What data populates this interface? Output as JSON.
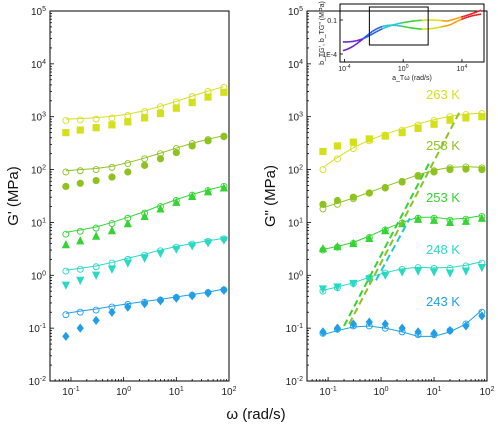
{
  "chart_data": [
    {
      "type": "scatter",
      "panel": "left",
      "ylabel": "G' (MPa)",
      "xlabel": "ω (rad/s)",
      "x_scale": "log",
      "y_scale": "log",
      "xlim": [
        0.04,
        100
      ],
      "ylim": [
        0.01,
        100000
      ],
      "x_ticks": [
        "10^-1",
        "10^0",
        "10^1",
        "10^2"
      ],
      "y_ticks": [
        "10^-2",
        "10^-1",
        "10^0",
        "10^1",
        "10^2",
        "10^3",
        "10^4",
        "10^5"
      ],
      "series": [
        {
          "name": "263 K",
          "color": "#d4e01c",
          "filled_marker": "square",
          "x": [
            0.08,
            0.15,
            0.3,
            0.6,
            1.2,
            2.5,
            5,
            10,
            20,
            40,
            80
          ],
          "filled_y": [
            500,
            560,
            620,
            700,
            800,
            950,
            1150,
            1450,
            1850,
            2350,
            2900
          ],
          "open_y": [
            850,
            870,
            900,
            950,
            1050,
            1250,
            1550,
            1900,
            2400,
            3000,
            3600
          ],
          "fit_y": [
            900,
            920,
            960,
            1020,
            1120,
            1300,
            1580,
            1950,
            2450,
            3050,
            3700
          ]
        },
        {
          "name": "258 K",
          "color": "#8dc21f",
          "filled_marker": "circle",
          "x": [
            0.08,
            0.15,
            0.3,
            0.6,
            1.2,
            2.5,
            5,
            10,
            20,
            40,
            80
          ],
          "filled_y": [
            48,
            55,
            62,
            72,
            90,
            120,
            160,
            210,
            280,
            350,
            420
          ],
          "open_y": [
            90,
            95,
            100,
            110,
            130,
            160,
            200,
            250,
            310,
            370,
            430
          ],
          "fit_y": [
            95,
            100,
            105,
            115,
            135,
            165,
            205,
            255,
            315,
            375,
            440
          ]
        },
        {
          "name": "253 K",
          "color": "#33d433",
          "filled_marker": "triangle-up",
          "x": [
            0.08,
            0.15,
            0.3,
            0.6,
            1.2,
            2.5,
            5,
            10,
            20,
            40,
            80
          ],
          "filled_y": [
            3.8,
            4.5,
            5.5,
            7,
            9.5,
            13,
            18,
            24,
            31,
            38,
            45
          ],
          "open_y": [
            6,
            6.8,
            7.8,
            9.5,
            12,
            15,
            20,
            26,
            33,
            40,
            48
          ],
          "fit_y": [
            6.5,
            7.2,
            8.2,
            10,
            12.5,
            16,
            21,
            27,
            34,
            41,
            49
          ]
        },
        {
          "name": "248 K",
          "color": "#28d9c4",
          "filled_marker": "triangle-down",
          "x": [
            0.08,
            0.15,
            0.3,
            0.6,
            1.2,
            2.5,
            5,
            10,
            20,
            40,
            80
          ],
          "filled_y": [
            0.65,
            0.8,
            1.0,
            1.3,
            1.7,
            2.1,
            2.6,
            3.1,
            3.6,
            4.1,
            4.6
          ],
          "open_y": [
            1.2,
            1.3,
            1.45,
            1.7,
            2.0,
            2.4,
            2.9,
            3.4,
            3.9,
            4.4,
            4.9
          ],
          "fit_y": [
            1.25,
            1.35,
            1.5,
            1.75,
            2.1,
            2.5,
            3.0,
            3.5,
            4.0,
            4.5,
            5.0
          ]
        },
        {
          "name": "243 K",
          "color": "#1f9fe8",
          "filled_marker": "diamond",
          "x": [
            0.08,
            0.15,
            0.3,
            0.6,
            1.2,
            2.5,
            5,
            10,
            20,
            40,
            80
          ],
          "filled_y": [
            0.07,
            0.1,
            0.14,
            0.2,
            0.25,
            0.29,
            0.33,
            0.37,
            0.41,
            0.46,
            0.52
          ],
          "open_y": [
            0.18,
            0.2,
            0.22,
            0.25,
            0.28,
            0.31,
            0.34,
            0.38,
            0.42,
            0.47,
            0.53
          ],
          "fit_y": [
            0.19,
            0.21,
            0.23,
            0.26,
            0.29,
            0.32,
            0.35,
            0.39,
            0.43,
            0.48,
            0.55
          ]
        }
      ]
    },
    {
      "type": "scatter",
      "panel": "right",
      "ylabel": "G\" (MPa)",
      "xlabel": "ω (rad/s)",
      "x_scale": "log",
      "y_scale": "log",
      "xlim": [
        0.04,
        100
      ],
      "ylim": [
        0.01,
        100000
      ],
      "x_ticks": [
        "10^-1",
        "10^0",
        "10^1",
        "10^2"
      ],
      "y_ticks": [
        "10^-2",
        "10^-1",
        "10^0",
        "10^1",
        "10^2",
        "10^3",
        "10^4",
        "10^5"
      ],
      "series": [
        {
          "name": "263 K",
          "color": "#d4e01c",
          "filled_marker": "square",
          "x": [
            0.08,
            0.15,
            0.3,
            0.6,
            1.2,
            2.5,
            5,
            10,
            20,
            40,
            80
          ],
          "filled_y": [
            220,
            280,
            330,
            380,
            430,
            500,
            600,
            720,
            860,
            950,
            1000
          ],
          "open_y": [
            100,
            160,
            250,
            350,
            450,
            560,
            700,
            850,
            1000,
            1100,
            1150
          ],
          "fit_y": [
            110,
            170,
            260,
            360,
            470,
            590,
            730,
            880,
            1020,
            1120,
            1170
          ]
        },
        {
          "name": "258 K",
          "color": "#8dc21f",
          "filled_marker": "circle",
          "x": [
            0.08,
            0.15,
            0.3,
            0.6,
            1.2,
            2.5,
            5,
            10,
            20,
            40,
            80
          ],
          "filled_y": [
            22,
            26,
            30,
            36,
            45,
            58,
            75,
            90,
            100,
            102,
            100
          ],
          "open_y": [
            18,
            22,
            28,
            36,
            46,
            60,
            78,
            95,
            108,
            112,
            108
          ],
          "fit_y": [
            19,
            23,
            29,
            37,
            48,
            62,
            80,
            97,
            110,
            114,
            110
          ]
        },
        {
          "name": "253 K",
          "color": "#33d433",
          "filled_marker": "triangle-up",
          "x": [
            0.08,
            0.15,
            0.3,
            0.6,
            1.2,
            2.5,
            5,
            10,
            20,
            40,
            80
          ],
          "filled_y": [
            3.2,
            3.5,
            4.0,
            5.0,
            7.0,
            9.5,
            11.5,
            11.0,
            10.0,
            10.5,
            12
          ],
          "open_y": [
            3.0,
            3.4,
            4.0,
            5.2,
            7.2,
            9.8,
            12,
            12,
            11,
            11.5,
            13
          ],
          "fit_y": [
            3.1,
            3.5,
            4.2,
            5.5,
            7.5,
            10,
            12.5,
            12.5,
            11.5,
            12,
            13.5
          ]
        },
        {
          "name": "248 K",
          "color": "#28d9c4",
          "filled_marker": "triangle-down",
          "x": [
            0.08,
            0.15,
            0.3,
            0.6,
            1.2,
            2.5,
            5,
            10,
            20,
            40,
            80
          ],
          "filled_y": [
            0.55,
            0.6,
            0.7,
            0.85,
            1.0,
            1.15,
            1.2,
            1.15,
            1.1,
            1.2,
            1.4
          ],
          "open_y": [
            0.5,
            0.58,
            0.7,
            0.9,
            1.1,
            1.3,
            1.4,
            1.35,
            1.35,
            1.5,
            1.7
          ],
          "fit_y": [
            0.52,
            0.6,
            0.72,
            0.92,
            1.12,
            1.32,
            1.42,
            1.38,
            1.4,
            1.55,
            1.8
          ]
        },
        {
          "name": "243 K",
          "color": "#1f9fe8",
          "filled_marker": "diamond",
          "x": [
            0.08,
            0.15,
            0.3,
            0.6,
            1.2,
            2.5,
            5,
            10,
            20,
            40,
            80
          ],
          "filled_y": [
            0.085,
            0.1,
            0.12,
            0.13,
            0.12,
            0.1,
            0.085,
            0.08,
            0.09,
            0.11,
            0.17
          ],
          "open_y": [
            0.08,
            0.095,
            0.11,
            0.11,
            0.1,
            0.085,
            0.075,
            0.075,
            0.09,
            0.12,
            0.2
          ],
          "fit_y": [
            0.075,
            0.09,
            0.105,
            0.11,
            0.1,
            0.085,
            0.07,
            0.07,
            0.085,
            0.12,
            0.22
          ]
        }
      ],
      "guide_lines": [
        {
          "color": "#8dc21f",
          "from": [
            0.25,
            0.12
          ],
          "to": [
            30,
            1200
          ]
        },
        {
          "color": "#33d433",
          "from": [
            0.2,
            0.11
          ],
          "to": [
            8,
            130
          ]
        },
        {
          "color": "#1fc8d4",
          "from": [
            0.8,
            0.8
          ],
          "to": [
            3.5,
            12
          ]
        }
      ],
      "labels": [
        {
          "text": "263 K",
          "color": "#d4e01c"
        },
        {
          "text": "258 K",
          "color": "#8dc21f"
        },
        {
          "text": "253 K",
          "color": "#33d433"
        },
        {
          "text": "248 K",
          "color": "#28d9c4"
        },
        {
          "text": "243 K",
          "color": "#1f9fe8"
        }
      ]
    }
  ],
  "inset": {
    "ylabel": "b_TG', b_TG\" (MPa)",
    "xlabel": "a_Tω (rad/s)",
    "y_ticks": [
      "1E-4",
      "0.1"
    ],
    "x_ticks": [
      "10^-4",
      "10^0",
      "10^4"
    ],
    "box_range_x": [
      0.005,
      50
    ],
    "curve_colors": [
      "#6a1fd4",
      "#1f5fe8",
      "#1fc8d4",
      "#33d433",
      "#d4e01c",
      "#f0a010",
      "#e02020"
    ]
  }
}
